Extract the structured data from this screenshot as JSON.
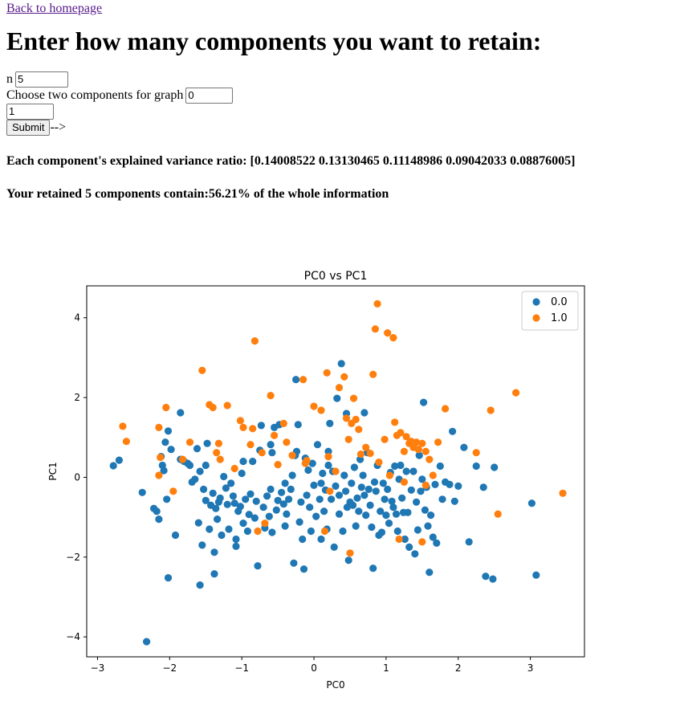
{
  "nav": {
    "back_link": "Back to homepage"
  },
  "heading": "Enter how many components you want to retain:",
  "form": {
    "n_label": "n",
    "n_value": "5",
    "components_label": "Choose two components for graph",
    "component_1": "0",
    "component_2": "1",
    "submit_label": "Submit",
    "arrow_text": "-->"
  },
  "results": {
    "variance_text": "Each component's explained variance ratio: [0.14008522 0.13130465 0.11148986 0.09042033 0.08876005]",
    "retained_text": "Your retained 5 components contain:56.21% of the whole information"
  },
  "chart_data": {
    "type": "scatter",
    "title": "PC0 vs PC1",
    "xlabel": "PC0",
    "ylabel": "PC1",
    "xlim": [
      -3.15,
      3.75
    ],
    "ylim": [
      -4.5,
      4.8
    ],
    "xticks": [
      -3,
      -2,
      -1,
      0,
      1,
      2,
      3
    ],
    "yticks": [
      -4,
      -2,
      0,
      2,
      4
    ],
    "legend_position": "top-right",
    "series": [
      {
        "name": "0.0",
        "color": "#1f77b4",
        "points": [
          [
            -2.78,
            0.29
          ],
          [
            -2.7,
            0.43
          ],
          [
            -2.38,
            -0.38
          ],
          [
            -2.22,
            -0.78
          ],
          [
            -2.18,
            -0.85
          ],
          [
            -2.15,
            -1.05
          ],
          [
            -2.12,
            0.52
          ],
          [
            -2.1,
            0.3
          ],
          [
            -2.08,
            0.17
          ],
          [
            -2.06,
            0.88
          ],
          [
            -2.04,
            -0.55
          ],
          [
            -2.02,
            1.16
          ],
          [
            -1.98,
            0.7
          ],
          [
            -1.92,
            -1.45
          ],
          [
            -1.85,
            1.62
          ],
          [
            -1.8,
            0.4
          ],
          [
            -1.75,
            0.35
          ],
          [
            -1.72,
            0.3
          ],
          [
            -1.69,
            -0.12
          ],
          [
            -1.65,
            -0.05
          ],
          [
            -1.62,
            0.72
          ],
          [
            -1.6,
            -1.14
          ],
          [
            -1.58,
            0.15
          ],
          [
            -1.55,
            -1.7
          ],
          [
            -1.53,
            -0.3
          ],
          [
            -1.5,
            -0.58
          ],
          [
            -1.48,
            0.85
          ],
          [
            -1.45,
            -1.3
          ],
          [
            -1.43,
            -0.7
          ],
          [
            -1.4,
            -0.4
          ],
          [
            -1.38,
            -1.88
          ],
          [
            -1.36,
            -0.78
          ],
          [
            -1.34,
            -1.05
          ],
          [
            -1.32,
            -0.62
          ],
          [
            -1.3,
            -0.52
          ],
          [
            -1.28,
            -1.45
          ],
          [
            -1.25,
            0.02
          ],
          [
            -1.22,
            -0.27
          ],
          [
            -1.2,
            -0.68
          ],
          [
            -1.18,
            -1.3
          ],
          [
            -1.15,
            -0.15
          ],
          [
            -1.12,
            -0.47
          ],
          [
            -1.1,
            -0.65
          ],
          [
            -1.08,
            -1.55
          ],
          [
            -1.05,
            -0.85
          ],
          [
            -1.02,
            -0.73
          ],
          [
            -1.0,
            0.1
          ],
          [
            -0.98,
            -1.15
          ],
          [
            -0.95,
            -0.55
          ],
          [
            -0.92,
            -1.35
          ],
          [
            -0.9,
            -0.93
          ],
          [
            -0.88,
            -0.42
          ],
          [
            -0.85,
            0.4
          ],
          [
            -0.82,
            -1.02
          ],
          [
            -0.8,
            -0.6
          ],
          [
            -0.78,
            -2.22
          ],
          [
            -0.75,
            0.68
          ],
          [
            -0.73,
            1.3
          ],
          [
            -0.7,
            -0.75
          ],
          [
            -0.68,
            -1.27
          ],
          [
            -0.65,
            -0.47
          ],
          [
            -0.62,
            -0.98
          ],
          [
            -0.6,
            -0.3
          ],
          [
            -0.58,
            0.62
          ],
          [
            -0.55,
            1.25
          ],
          [
            -0.52,
            -0.82
          ],
          [
            -0.5,
            -0.58
          ],
          [
            -0.48,
            1.32
          ],
          [
            -0.45,
            -0.38
          ],
          [
            -0.42,
            -0.67
          ],
          [
            -0.4,
            -1.22
          ],
          [
            -0.38,
            -0.92
          ],
          [
            -0.35,
            -0.55
          ],
          [
            -0.32,
            -0.3
          ],
          [
            -0.3,
            0.05
          ],
          [
            -0.28,
            -2.15
          ],
          [
            -0.26,
            0.55
          ],
          [
            -0.24,
            0.65
          ],
          [
            -0.22,
            1.32
          ],
          [
            -0.2,
            -1.12
          ],
          [
            -0.18,
            -0.62
          ],
          [
            -0.16,
            -1.55
          ],
          [
            -0.14,
            -2.3
          ],
          [
            -0.12,
            0.48
          ],
          [
            -0.1,
            -0.45
          ],
          [
            -0.08,
            0.18
          ],
          [
            -0.06,
            -0.75
          ],
          [
            -0.04,
            -1.35
          ],
          [
            -0.02,
            0.35
          ],
          [
            0.0,
            -0.2
          ],
          [
            0.03,
            -0.98
          ],
          [
            0.05,
            0.82
          ],
          [
            0.08,
            -0.55
          ],
          [
            0.1,
            -1.55
          ],
          [
            0.12,
            0.1
          ],
          [
            0.14,
            -0.85
          ],
          [
            0.16,
            -0.32
          ],
          [
            0.18,
            -1.3
          ],
          [
            0.2,
            0.3
          ],
          [
            0.22,
            1.35
          ],
          [
            0.24,
            -0.55
          ],
          [
            0.26,
            0.15
          ],
          [
            0.28,
            -1.75
          ],
          [
            0.3,
            -0.22
          ],
          [
            0.32,
            1.98
          ],
          [
            0.35,
            -0.92
          ],
          [
            0.38,
            2.85
          ],
          [
            0.4,
            -1.35
          ],
          [
            0.42,
            0.05
          ],
          [
            0.44,
            -0.35
          ],
          [
            0.46,
            -0.75
          ],
          [
            0.48,
            -2.08
          ],
          [
            0.5,
            -0.62
          ],
          [
            0.52,
            -0.15
          ],
          [
            0.54,
            -0.7
          ],
          [
            0.56,
            0.25
          ],
          [
            0.58,
            -1.22
          ],
          [
            0.6,
            -0.52
          ],
          [
            0.62,
            -0.85
          ],
          [
            0.64,
            0.45
          ],
          [
            0.66,
            -0.25
          ],
          [
            0.68,
            0.05
          ],
          [
            0.7,
            -0.45
          ],
          [
            0.72,
            -0.95
          ],
          [
            0.74,
            0.62
          ],
          [
            0.76,
            -0.3
          ],
          [
            0.78,
            -0.7
          ],
          [
            0.8,
            -1.25
          ],
          [
            0.82,
            -2.28
          ],
          [
            0.84,
            -0.12
          ],
          [
            0.86,
            -0.35
          ],
          [
            0.88,
            0.3
          ],
          [
            0.9,
            -1.45
          ],
          [
            0.92,
            -0.85
          ],
          [
            0.94,
            -1.38
          ],
          [
            0.96,
            -0.15
          ],
          [
            0.98,
            -0.55
          ],
          [
            1.0,
            -0.95
          ],
          [
            1.02,
            -0.3
          ],
          [
            1.04,
            -1.15
          ],
          [
            1.06,
            0.12
          ],
          [
            1.08,
            -0.6
          ],
          [
            1.1,
            -0.75
          ],
          [
            1.12,
            0.28
          ],
          [
            1.14,
            -0.92
          ],
          [
            1.16,
            -1.35
          ],
          [
            1.18,
            -0.05
          ],
          [
            1.2,
            0.3
          ],
          [
            1.22,
            -0.52
          ],
          [
            1.24,
            -0.88
          ],
          [
            1.26,
            -1.55
          ],
          [
            1.28,
            0.15
          ],
          [
            1.3,
            -0.88
          ],
          [
            1.32,
            -1.75
          ],
          [
            1.35,
            -0.32
          ],
          [
            1.38,
            0.15
          ],
          [
            1.4,
            -1.92
          ],
          [
            1.42,
            -0.62
          ],
          [
            1.44,
            -1.32
          ],
          [
            1.46,
            0.55
          ],
          [
            1.48,
            -0.35
          ],
          [
            1.5,
            -0.05
          ],
          [
            1.52,
            1.88
          ],
          [
            1.54,
            -0.82
          ],
          [
            1.56,
            -0.25
          ],
          [
            1.58,
            -1.22
          ],
          [
            1.6,
            -2.38
          ],
          [
            1.62,
            -0.95
          ],
          [
            1.65,
            -1.5
          ],
          [
            1.68,
            -0.18
          ],
          [
            1.7,
            -1.65
          ],
          [
            1.75,
            0.28
          ],
          [
            1.78,
            -0.55
          ],
          [
            1.82,
            -0.12
          ],
          [
            1.88,
            -0.18
          ],
          [
            1.92,
            1.15
          ],
          [
            1.95,
            -0.6
          ],
          [
            2.0,
            -0.22
          ],
          [
            2.08,
            0.75
          ],
          [
            2.15,
            -1.62
          ],
          [
            2.25,
            0.28
          ],
          [
            2.35,
            -0.25
          ],
          [
            2.38,
            -2.48
          ],
          [
            2.48,
            -2.55
          ],
          [
            2.5,
            0.25
          ],
          [
            3.02,
            -0.65
          ],
          [
            3.08,
            -2.45
          ],
          [
            -2.32,
            -4.12
          ],
          [
            -1.58,
            -2.7
          ],
          [
            -2.02,
            -2.52
          ],
          [
            -1.38,
            -2.42
          ],
          [
            -1.08,
            -1.73
          ],
          [
            -0.58,
            -1.38
          ],
          [
            -0.4,
            -0.15
          ],
          [
            0.2,
            0.65
          ],
          [
            0.45,
            1.6
          ],
          [
            0.7,
            1.62
          ],
          [
            -1.85,
            0.45
          ],
          [
            -1.5,
            0.3
          ],
          [
            -0.98,
            0.4
          ],
          [
            -0.25,
            2.45
          ],
          [
            -0.6,
            0.82
          ],
          [
            0.1,
            -0.15
          ],
          [
            0.35,
            -0.45
          ]
        ]
      },
      {
        "name": "1.0",
        "color": "#ff7f0e",
        "points": [
          [
            -2.65,
            1.28
          ],
          [
            -2.6,
            0.9
          ],
          [
            -2.15,
            1.25
          ],
          [
            -2.13,
            0.5
          ],
          [
            -2.15,
            0.05
          ],
          [
            -2.05,
            1.75
          ],
          [
            -1.95,
            -0.35
          ],
          [
            -1.82,
            0.45
          ],
          [
            -1.72,
            0.88
          ],
          [
            -1.55,
            2.68
          ],
          [
            -1.45,
            1.82
          ],
          [
            -1.4,
            1.75
          ],
          [
            -1.35,
            0.62
          ],
          [
            -1.32,
            0.85
          ],
          [
            -1.3,
            0.45
          ],
          [
            -1.2,
            1.8
          ],
          [
            -1.1,
            0.22
          ],
          [
            -1.02,
            1.42
          ],
          [
            -0.98,
            1.25
          ],
          [
            -0.88,
            0.82
          ],
          [
            -0.85,
            1.22
          ],
          [
            -0.82,
            3.42
          ],
          [
            -0.78,
            -1.35
          ],
          [
            -0.72,
            0.62
          ],
          [
            -0.68,
            -1.15
          ],
          [
            -0.6,
            2.05
          ],
          [
            -0.55,
            1.05
          ],
          [
            -0.5,
            0.32
          ],
          [
            -0.42,
            1.35
          ],
          [
            -0.38,
            0.88
          ],
          [
            -0.3,
            0.55
          ],
          [
            -0.15,
            2.45
          ],
          [
            -0.12,
            0.35
          ],
          [
            -0.1,
            0.42
          ],
          [
            0.0,
            1.78
          ],
          [
            0.1,
            1.68
          ],
          [
            0.15,
            -1.35
          ],
          [
            0.18,
            2.62
          ],
          [
            0.2,
            0.52
          ],
          [
            0.22,
            -0.35
          ],
          [
            0.3,
            0.15
          ],
          [
            0.35,
            2.25
          ],
          [
            0.42,
            2.52
          ],
          [
            0.45,
            1.48
          ],
          [
            0.48,
            0.95
          ],
          [
            0.5,
            -1.9
          ],
          [
            0.52,
            1.35
          ],
          [
            0.55,
            1.98
          ],
          [
            0.58,
            1.45
          ],
          [
            0.62,
            1.2
          ],
          [
            0.65,
            0.58
          ],
          [
            0.72,
            0.75
          ],
          [
            0.78,
            0.6
          ],
          [
            0.82,
            2.58
          ],
          [
            0.85,
            3.72
          ],
          [
            0.88,
            4.35
          ],
          [
            0.9,
            0.38
          ],
          [
            0.98,
            0.95
          ],
          [
            1.02,
            3.62
          ],
          [
            1.05,
            0.05
          ],
          [
            1.1,
            3.5
          ],
          [
            1.12,
            1.38
          ],
          [
            1.15,
            1.05
          ],
          [
            1.2,
            1.12
          ],
          [
            1.25,
            0.65
          ],
          [
            1.28,
            1.02
          ],
          [
            1.32,
            0.85
          ],
          [
            1.35,
            0.9
          ],
          [
            1.38,
            0.75
          ],
          [
            1.42,
            0.88
          ],
          [
            1.45,
            0.7
          ],
          [
            1.5,
            0.85
          ],
          [
            1.55,
            0.65
          ],
          [
            1.6,
            0.45
          ],
          [
            1.65,
            0.05
          ],
          [
            1.72,
            0.88
          ],
          [
            1.82,
            1.72
          ],
          [
            2.25,
            0.62
          ],
          [
            2.45,
            1.68
          ],
          [
            2.55,
            -0.92
          ],
          [
            2.8,
            2.12
          ],
          [
            3.45,
            -0.4
          ],
          [
            1.18,
            -1.55
          ],
          [
            1.5,
            -1.62
          ],
          [
            1.55,
            -0.2
          ],
          [
            1.25,
            -0.12
          ]
        ]
      }
    ]
  }
}
